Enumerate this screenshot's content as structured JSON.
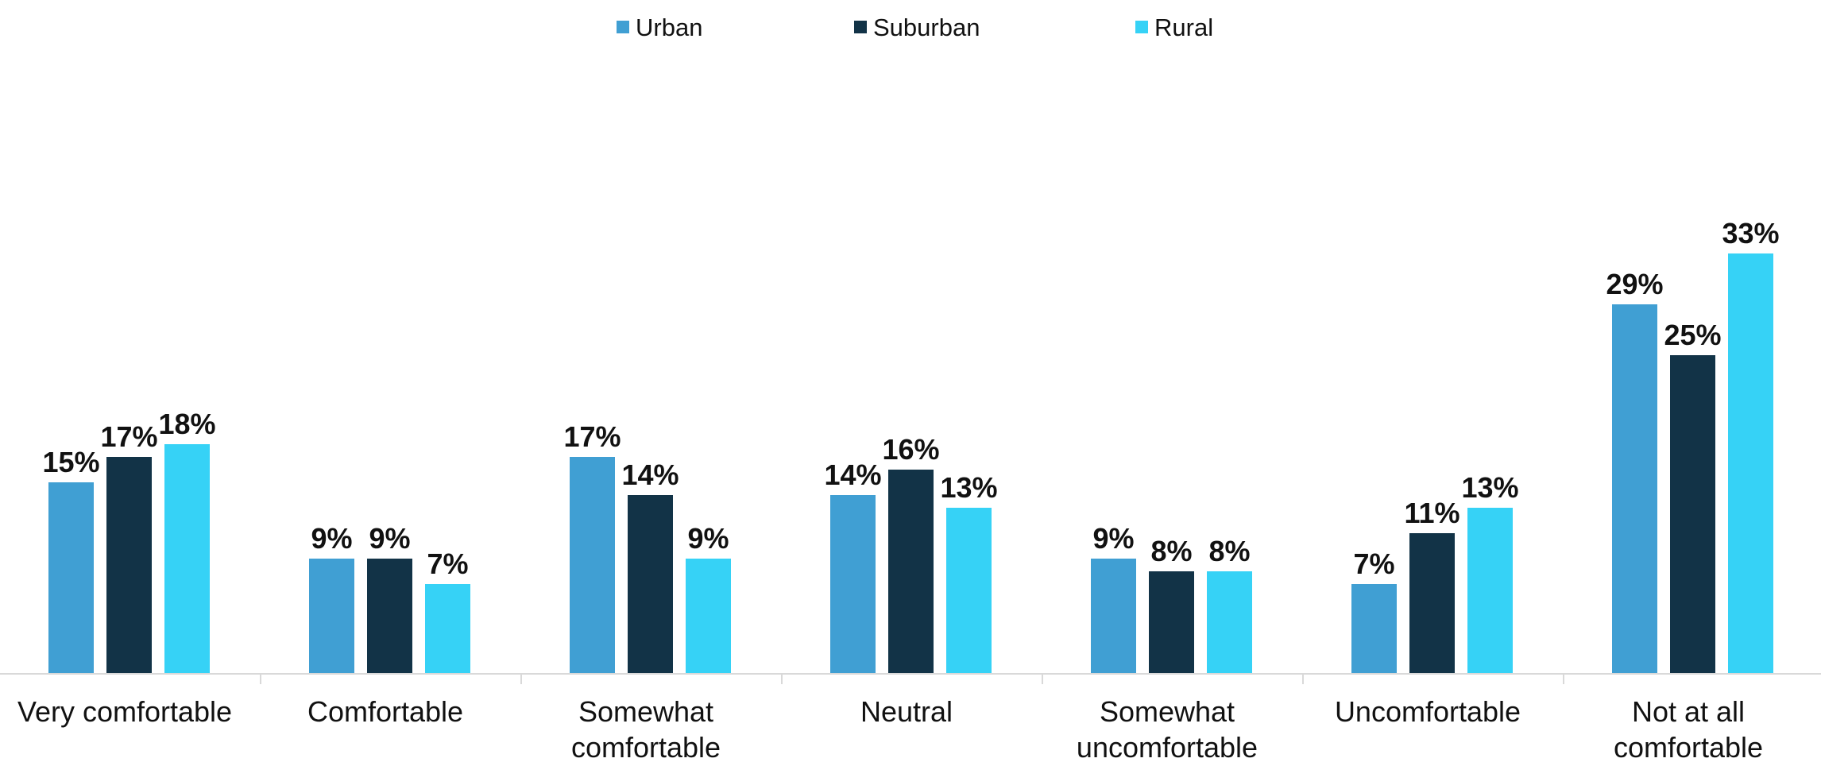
{
  "chart_data": {
    "type": "bar",
    "categories": [
      [
        "Very comfortable"
      ],
      [
        "Comfortable"
      ],
      [
        "Somewhat",
        "comfortable"
      ],
      [
        "Neutral"
      ],
      [
        "Somewhat",
        "uncomfortable"
      ],
      [
        "Uncomfortable"
      ],
      [
        "Not at all",
        "comfortable"
      ]
    ],
    "series": [
      {
        "name": "Urban",
        "color": "#409FD3",
        "values": [
          15,
          9,
          17,
          14,
          9,
          7,
          29
        ]
      },
      {
        "name": "Suburban",
        "color": "#123347",
        "values": [
          17,
          9,
          14,
          16,
          8,
          11,
          25
        ]
      },
      {
        "name": "Rural",
        "color": "#36D2F6",
        "values": [
          18,
          7,
          9,
          13,
          8,
          13,
          33
        ]
      }
    ],
    "value_suffix": "%",
    "ylim": [
      0,
      35
    ],
    "grid": false,
    "legend_position": "top-center",
    "axis_color": "#d9d9d9"
  }
}
